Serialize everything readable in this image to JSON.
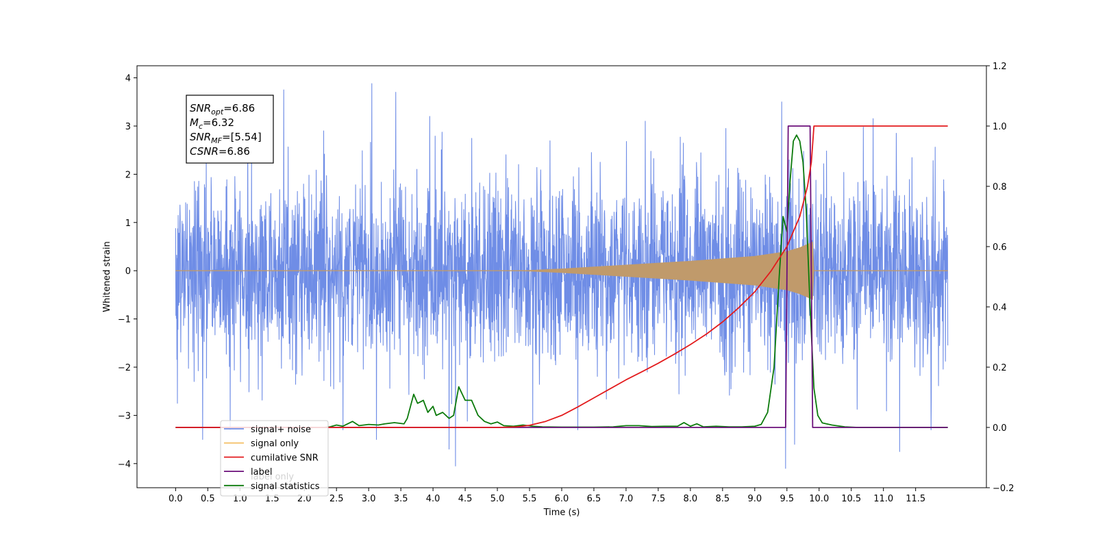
{
  "chart_data": {
    "type": "line",
    "xlabel": "Time (s)",
    "ylabel": "Whitened strain",
    "xlim": [
      -0.6,
      12.6
    ],
    "ylim_left": [
      -4.5,
      4.25
    ],
    "ylim_right": [
      -0.2,
      1.2
    ],
    "x_ticks": [
      "0.0",
      "0.5",
      "1.0",
      "1.5",
      "2.0",
      "2.5",
      "3.0",
      "3.5",
      "4.0",
      "4.5",
      "5.0",
      "5.5",
      "6.0",
      "6.5",
      "7.0",
      "7.5",
      "8.0",
      "8.5",
      "9.0",
      "9.5",
      "10.0",
      "10.5",
      "11.0",
      "11.5"
    ],
    "y_ticks_left": [
      "4",
      "3",
      "2",
      "1",
      "0",
      "−1",
      "−2",
      "−3",
      "−4"
    ],
    "y_ticks_right": [
      "1.2",
      "1.0",
      "0.8",
      "0.6",
      "0.4",
      "0.2",
      "0.0",
      "−0.2"
    ],
    "legend": {
      "placement": "lower-left",
      "entries": [
        {
          "label": "signal+ noise",
          "color": "#6f8de6"
        },
        {
          "label": "signal only",
          "color": "#f5c26b"
        },
        {
          "label": "cumilative SNR",
          "color": "#e31a1c"
        },
        {
          "label": "label",
          "color": "#6b0f7a"
        },
        {
          "label": "signal statistics",
          "color": "#0b7a0b"
        }
      ],
      "hidden_entries": [
        "label only"
      ]
    },
    "annotation": {
      "lines": [
        {
          "var": "SNR",
          "sub": "opt",
          "value": "=6.86"
        },
        {
          "var": "M",
          "sub": "c",
          "value": "=6.32"
        },
        {
          "var": "SNR",
          "sub": "MF",
          "value": "=[5.54]"
        },
        {
          "var": "CSNR",
          "sub": "",
          "value": "=6.86"
        }
      ]
    },
    "series": [
      {
        "name": "signal+ noise",
        "axis": "left",
        "color": "#6f8de6",
        "description": "whitened noise, unit variance, t=0..12 s",
        "x_range": [
          0,
          12
        ],
        "spikes": [
          [
            0.03,
            -2.75
          ],
          [
            0.42,
            -3.5
          ],
          [
            1.68,
            3.75
          ],
          [
            3.05,
            3.88
          ],
          [
            3.12,
            -3.5
          ],
          [
            3.42,
            3.7
          ],
          [
            4.25,
            -3.7
          ],
          [
            4.35,
            -4.05
          ],
          [
            9.42,
            3.5
          ],
          [
            9.48,
            -4.1
          ],
          [
            9.62,
            -3.6
          ],
          [
            11.25,
            -3.75
          ],
          [
            5.55,
            -3.2
          ],
          [
            6.25,
            -3.3
          ],
          [
            0.85,
            -3.3
          ],
          [
            2.6,
            -3.3
          ],
          [
            11.2,
            2.85
          ],
          [
            2.3,
            2.9
          ],
          [
            3.95,
            3.2
          ],
          [
            7.3,
            3.1
          ],
          [
            8.55,
            2.95
          ]
        ]
      },
      {
        "name": "signal only",
        "axis": "left",
        "color": "#c09a6b",
        "description": "chirp envelope, merger near 9.9 s",
        "envelope": [
          [
            0,
            0.0
          ],
          [
            5.0,
            0.0
          ],
          [
            5.5,
            0.01
          ],
          [
            6.0,
            0.04
          ],
          [
            6.5,
            0.08
          ],
          [
            7.0,
            0.12
          ],
          [
            7.5,
            0.16
          ],
          [
            8.0,
            0.2
          ],
          [
            8.5,
            0.25
          ],
          [
            9.0,
            0.3
          ],
          [
            9.3,
            0.36
          ],
          [
            9.5,
            0.4
          ],
          [
            9.7,
            0.48
          ],
          [
            9.82,
            0.55
          ],
          [
            9.9,
            0.6
          ],
          [
            9.92,
            0.0
          ],
          [
            12,
            0.0
          ]
        ]
      },
      {
        "name": "cumilative SNR",
        "axis": "right",
        "color": "#e31a1c",
        "points": [
          [
            0,
            0.0
          ],
          [
            5.0,
            0.0
          ],
          [
            5.3,
            0.002
          ],
          [
            5.5,
            0.007
          ],
          [
            5.75,
            0.02
          ],
          [
            6.0,
            0.04
          ],
          [
            6.25,
            0.068
          ],
          [
            6.5,
            0.098
          ],
          [
            6.75,
            0.128
          ],
          [
            7.0,
            0.158
          ],
          [
            7.25,
            0.185
          ],
          [
            7.5,
            0.213
          ],
          [
            7.75,
            0.243
          ],
          [
            8.0,
            0.275
          ],
          [
            8.25,
            0.31
          ],
          [
            8.5,
            0.35
          ],
          [
            8.75,
            0.397
          ],
          [
            9.0,
            0.45
          ],
          [
            9.25,
            0.518
          ],
          [
            9.5,
            0.6
          ],
          [
            9.7,
            0.7
          ],
          [
            9.82,
            0.8
          ],
          [
            9.88,
            0.88
          ],
          [
            9.92,
            1.0
          ],
          [
            12,
            1.0
          ]
        ]
      },
      {
        "name": "label",
        "axis": "right",
        "color": "#6b0f7a",
        "points": [
          [
            0,
            0.0
          ],
          [
            9.48,
            0.0
          ],
          [
            9.52,
            1.0
          ],
          [
            9.86,
            1.0
          ],
          [
            9.9,
            0.0
          ],
          [
            12,
            0.0
          ]
        ]
      },
      {
        "name": "signal statistics",
        "axis": "right",
        "color": "#0b7a0b",
        "points": [
          [
            0,
            0.0
          ],
          [
            2.3,
            0.0
          ],
          [
            2.4,
            0.002
          ],
          [
            2.5,
            0.008
          ],
          [
            2.6,
            0.004
          ],
          [
            2.75,
            0.02
          ],
          [
            2.85,
            0.006
          ],
          [
            3.0,
            0.01
          ],
          [
            3.15,
            0.008
          ],
          [
            3.25,
            0.012
          ],
          [
            3.4,
            0.016
          ],
          [
            3.55,
            0.012
          ],
          [
            3.6,
            0.03
          ],
          [
            3.65,
            0.07
          ],
          [
            3.7,
            0.11
          ],
          [
            3.76,
            0.08
          ],
          [
            3.85,
            0.09
          ],
          [
            3.92,
            0.05
          ],
          [
            4.0,
            0.07
          ],
          [
            4.05,
            0.04
          ],
          [
            4.15,
            0.05
          ],
          [
            4.25,
            0.03
          ],
          [
            4.32,
            0.04
          ],
          [
            4.4,
            0.135
          ],
          [
            4.5,
            0.09
          ],
          [
            4.6,
            0.09
          ],
          [
            4.7,
            0.04
          ],
          [
            4.8,
            0.02
          ],
          [
            4.9,
            0.012
          ],
          [
            5.0,
            0.018
          ],
          [
            5.1,
            0.006
          ],
          [
            5.25,
            0.004
          ],
          [
            5.4,
            0.008
          ],
          [
            5.55,
            0.004
          ],
          [
            5.7,
            0.002
          ],
          [
            6.0,
            0.001
          ],
          [
            6.5,
            0.001
          ],
          [
            6.8,
            0.002
          ],
          [
            7.0,
            0.006
          ],
          [
            7.2,
            0.006
          ],
          [
            7.4,
            0.003
          ],
          [
            7.6,
            0.004
          ],
          [
            7.8,
            0.004
          ],
          [
            7.9,
            0.016
          ],
          [
            8.0,
            0.004
          ],
          [
            8.1,
            0.012
          ],
          [
            8.2,
            0.002
          ],
          [
            8.4,
            0.004
          ],
          [
            8.6,
            0.002
          ],
          [
            8.8,
            0.002
          ],
          [
            9.0,
            0.004
          ],
          [
            9.1,
            0.01
          ],
          [
            9.2,
            0.05
          ],
          [
            9.3,
            0.2
          ],
          [
            9.38,
            0.5
          ],
          [
            9.44,
            0.7
          ],
          [
            9.5,
            0.65
          ],
          [
            9.55,
            0.82
          ],
          [
            9.6,
            0.95
          ],
          [
            9.65,
            0.97
          ],
          [
            9.7,
            0.95
          ],
          [
            9.75,
            0.88
          ],
          [
            9.8,
            0.72
          ],
          [
            9.86,
            0.4
          ],
          [
            9.92,
            0.13
          ],
          [
            9.98,
            0.04
          ],
          [
            10.05,
            0.015
          ],
          [
            10.2,
            0.008
          ],
          [
            10.4,
            0.002
          ],
          [
            10.6,
            0.0
          ],
          [
            12,
            0.0
          ]
        ]
      }
    ]
  }
}
